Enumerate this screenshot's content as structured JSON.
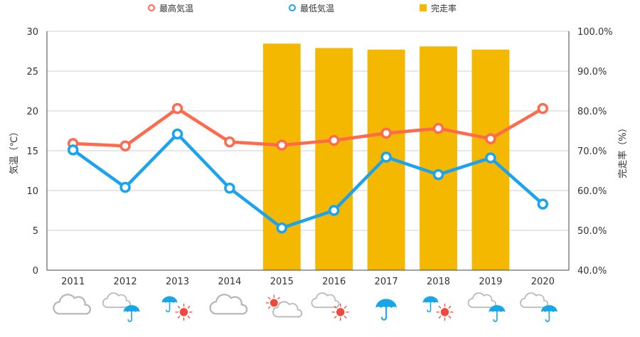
{
  "chart_data": {
    "type": "bar+line",
    "categories": [
      "2011",
      "2012",
      "2013",
      "2014",
      "2015",
      "2016",
      "2017",
      "2018",
      "2019",
      "2020"
    ],
    "series": [
      {
        "name": "最高気温",
        "type": "line",
        "axis": "left",
        "color": "#ff6a4d",
        "values": [
          15.9,
          15.6,
          20.3,
          16.1,
          15.7,
          16.3,
          17.2,
          17.8,
          16.5,
          20.3
        ]
      },
      {
        "name": "最低気温",
        "type": "line",
        "axis": "left",
        "color": "#1aa3f0",
        "values": [
          15.1,
          10.4,
          17.1,
          10.3,
          5.3,
          7.5,
          14.2,
          12.0,
          14.1,
          8.3
        ]
      },
      {
        "name": "完走率",
        "type": "bar",
        "axis": "right",
        "color": "#f5b800",
        "values": [
          null,
          null,
          null,
          null,
          96.9,
          95.8,
          95.4,
          96.2,
          95.4,
          null
        ]
      }
    ],
    "ylabel_left": "気温（℃）",
    "ylabel_right": "完走率（%）",
    "ylim_left": [
      0,
      30
    ],
    "ylim_right": [
      40,
      100
    ],
    "yticks_left": [
      "0",
      "5",
      "10",
      "15",
      "20",
      "25",
      "30"
    ],
    "yticks_right": [
      "40.0%",
      "50.0%",
      "60.0%",
      "70.0%",
      "80.0%",
      "90.0%",
      "100.0%"
    ],
    "grid": true,
    "legend_position": "top-center",
    "weather_icons": [
      [
        "cloud-icon"
      ],
      [
        "cloud-icon",
        "umbrella-icon"
      ],
      [
        "umbrella-icon",
        "sun-icon"
      ],
      [
        "cloud-icon"
      ],
      [
        "sun-icon",
        "cloud-icon"
      ],
      [
        "cloud-icon",
        "sun-icon"
      ],
      [
        "umbrella-icon"
      ],
      [
        "umbrella-icon",
        "sun-icon"
      ],
      [
        "cloud-icon",
        "umbrella-icon"
      ],
      [
        "cloud-icon",
        "umbrella-icon"
      ]
    ]
  }
}
